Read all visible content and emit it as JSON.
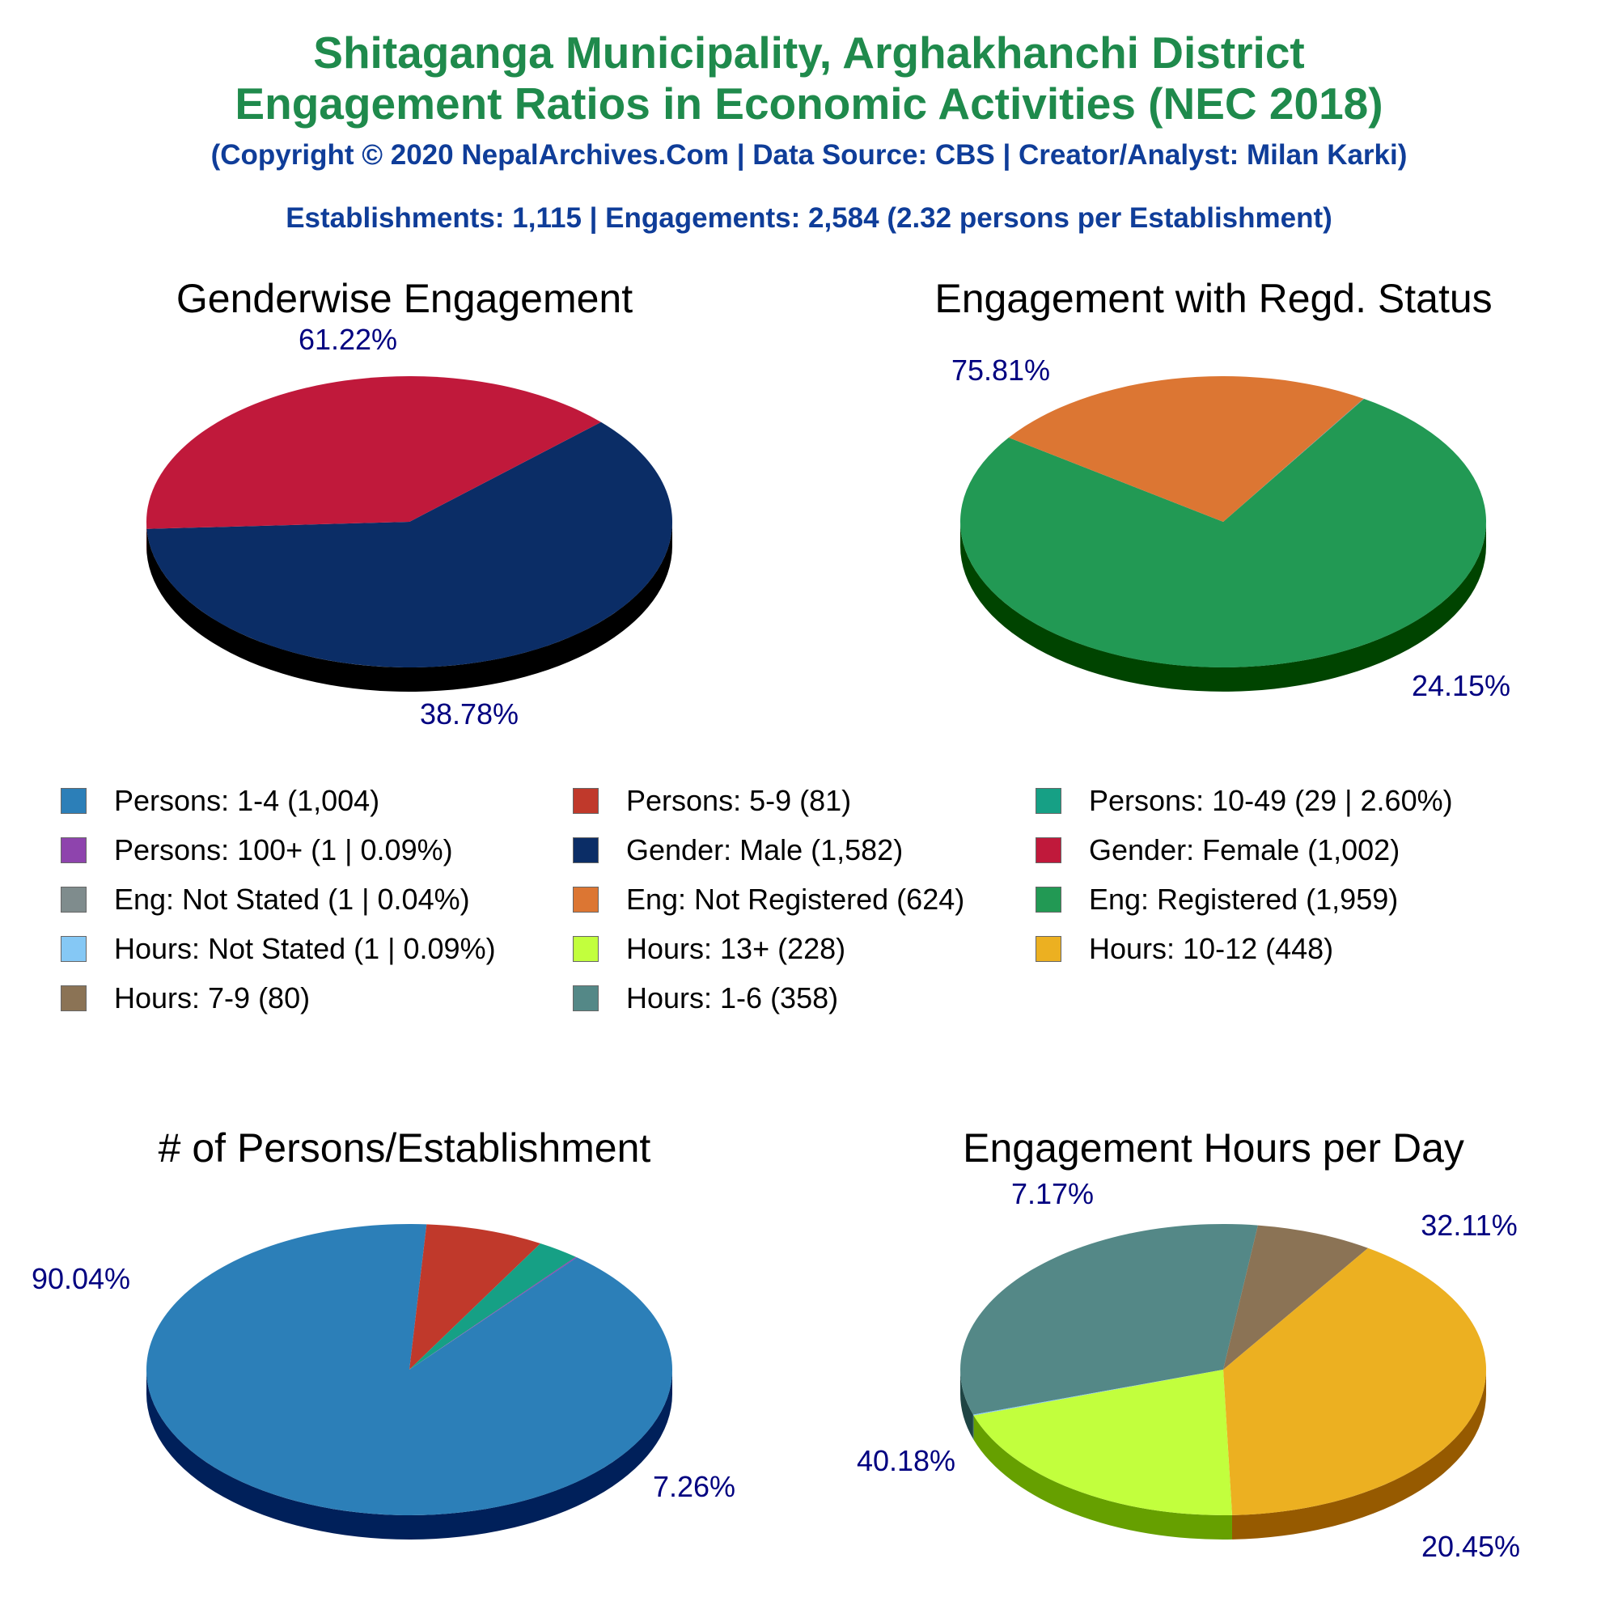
{
  "header": {
    "title_line1": "Shitaganga Municipality, Arghakhanchi District",
    "title_line2": "Engagement Ratios in Economic Activities (NEC 2018)",
    "copyright": "(Copyright © 2020 NepalArchives.Com | Data Source: CBS | Creator/Analyst: Milan Karki)",
    "stats": "Establishments: 1,115 | Engagements: 2,584 (2.32 persons per Establishment)"
  },
  "legend": [
    {
      "label": "Persons: 1-4 (1,004)",
      "color": "#2c7fb8"
    },
    {
      "label": "Persons: 5-9 (81)",
      "color": "#c0392b"
    },
    {
      "label": "Persons: 10-49 (29 | 2.60%)",
      "color": "#16a085"
    },
    {
      "label": "Persons: 100+ (1 | 0.09%)",
      "color": "#8e44ad"
    },
    {
      "label": "Gender: Male (1,582)",
      "color": "#0b2d66"
    },
    {
      "label": "Gender: Female (1,002)",
      "color": "#c0193b"
    },
    {
      "label": "Eng: Not Stated (1 | 0.04%)",
      "color": "#7f8c8d"
    },
    {
      "label": "Eng: Not Registered (624)",
      "color": "#dc7633"
    },
    {
      "label": "Eng: Registered (1,959)",
      "color": "#229954"
    },
    {
      "label": "Hours: Not Stated (1 | 0.09%)",
      "color": "#85c8f5"
    },
    {
      "label": "Hours: 13+ (228)",
      "color": "#c2ff3d"
    },
    {
      "label": "Hours: 10-12 (448)",
      "color": "#ecb021"
    },
    {
      "label": "Hours: 7-9 (80)",
      "color": "#8b7355"
    },
    {
      "label": "Hours: 1-6 (358)",
      "color": "#548887"
    }
  ],
  "chart_data": [
    {
      "type": "pie",
      "title": "Genderwise Engagement",
      "slices": [
        {
          "name": "Gender: Male",
          "value": 1582,
          "label": "61.22%",
          "color": "#0b2d66",
          "side": "#000000"
        },
        {
          "name": "Gender: Female",
          "value": 1002,
          "label": "38.78%",
          "color": "#c0193b",
          "side": "#6a0000"
        }
      ]
    },
    {
      "type": "pie",
      "title": "Engagement with Regd. Status",
      "slices": [
        {
          "name": "Eng: Registered",
          "value": 1959,
          "label": "75.81%",
          "color": "#229954",
          "side": "#004400"
        },
        {
          "name": "Eng: Not Registered",
          "value": 624,
          "label": "24.15%",
          "color": "#dc7633",
          "side": "#7a1a00"
        },
        {
          "name": "Eng: Not Stated",
          "value": 1,
          "label": "",
          "color": "#7f8c8d",
          "side": "#333333"
        }
      ]
    },
    {
      "type": "pie",
      "title": "# of Persons/Establishment",
      "slices": [
        {
          "name": "Persons: 1-4",
          "value": 1004,
          "label": "90.04%",
          "color": "#2c7fb8",
          "side": "#00205a"
        },
        {
          "name": "Persons: 5-9",
          "value": 81,
          "label": "7.26%",
          "color": "#c0392b",
          "side": "#660000"
        },
        {
          "name": "Persons: 10-49",
          "value": 29,
          "label": "",
          "color": "#16a085",
          "side": "#00443a"
        },
        {
          "name": "Persons: 100+",
          "value": 1,
          "label": "",
          "color": "#8e44ad",
          "side": "#3b0a50"
        }
      ]
    },
    {
      "type": "pie",
      "title": "Engagement Hours per Day",
      "slices": [
        {
          "name": "Hours: 1-6",
          "value": 358,
          "label": "32.11%",
          "color": "#548887",
          "side": "#1f4544"
        },
        {
          "name": "Hours: 7-9",
          "value": 80,
          "label": "7.17%",
          "color": "#8b7355",
          "side": "#4a3520"
        },
        {
          "name": "Hours: 10-12",
          "value": 448,
          "label": "40.18%",
          "color": "#ecb021",
          "side": "#965a00"
        },
        {
          "name": "Hours: 13+",
          "value": 228,
          "label": "20.45%",
          "color": "#c2ff3d",
          "side": "#66a000"
        },
        {
          "name": "Hours: Not Stated",
          "value": 1,
          "label": "",
          "color": "#85c8f5",
          "side": "#3a6f95"
        }
      ]
    }
  ]
}
